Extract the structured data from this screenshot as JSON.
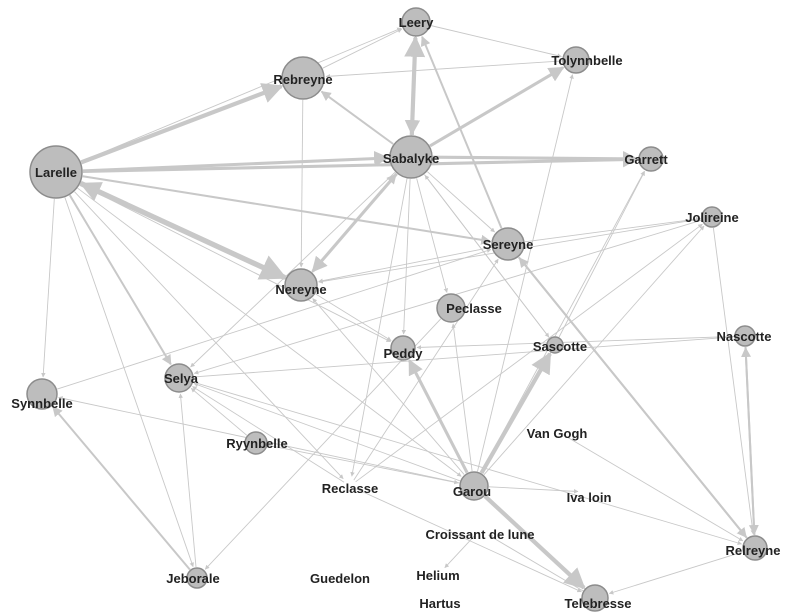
{
  "diagram": {
    "type": "directed-network",
    "colors": {
      "node_fill": "#bdbdbd",
      "node_stroke": "#8c8c8c",
      "edge": "#c8c8c8",
      "label": "#222222"
    },
    "nodes": [
      {
        "id": "leery",
        "label": "Leery"
      },
      {
        "id": "rebreyne",
        "label": "Rebreyne"
      },
      {
        "id": "tolynnbelle",
        "label": "Tolynnbelle"
      },
      {
        "id": "larelle",
        "label": "Larelle"
      },
      {
        "id": "sabalyke",
        "label": "Sabalyke"
      },
      {
        "id": "garrett",
        "label": "Garrett"
      },
      {
        "id": "jolireine",
        "label": "Jolireine"
      },
      {
        "id": "sereyne",
        "label": "Sereyne"
      },
      {
        "id": "nereyne",
        "label": "Nereyne"
      },
      {
        "id": "peclasse",
        "label": "Peclasse"
      },
      {
        "id": "nascotte",
        "label": "Nascotte"
      },
      {
        "id": "sascotte",
        "label": "Sascotte"
      },
      {
        "id": "peddy",
        "label": "Peddy"
      },
      {
        "id": "selya",
        "label": "Selya"
      },
      {
        "id": "synnbelle",
        "label": "Synnbelle"
      },
      {
        "id": "van_gogh",
        "label": "Van Gogh"
      },
      {
        "id": "ryynbelle",
        "label": "Ryynbelle"
      },
      {
        "id": "reclasse",
        "label": "Reclasse"
      },
      {
        "id": "garou",
        "label": "Garou"
      },
      {
        "id": "iva_loin",
        "label": "Iva loin"
      },
      {
        "id": "croissant",
        "label": "Croissant de lune"
      },
      {
        "id": "relreyne",
        "label": "Relreyne"
      },
      {
        "id": "jeborale",
        "label": "Jeborale"
      },
      {
        "id": "guedelon",
        "label": "Guedelon"
      },
      {
        "id": "helium",
        "label": "Helium"
      },
      {
        "id": "hartus",
        "label": "Hartus"
      },
      {
        "id": "telebresse",
        "label": "Telebresse"
      }
    ],
    "edges": [
      {
        "from": "larelle",
        "to": "rebreyne",
        "weight": 4
      },
      {
        "from": "larelle",
        "to": "leery",
        "weight": 1
      },
      {
        "from": "larelle",
        "to": "sabalyke",
        "weight": 3
      },
      {
        "from": "larelle",
        "to": "garrett",
        "weight": 3
      },
      {
        "from": "larelle",
        "to": "nereyne",
        "weight": 5
      },
      {
        "from": "nereyne",
        "to": "larelle",
        "weight": 4
      },
      {
        "from": "larelle",
        "to": "sereyne",
        "weight": 2
      },
      {
        "from": "larelle",
        "to": "synnbelle",
        "weight": 1
      },
      {
        "from": "larelle",
        "to": "selya",
        "weight": 2
      },
      {
        "from": "larelle",
        "to": "peddy",
        "weight": 1
      },
      {
        "from": "larelle",
        "to": "jeborale",
        "weight": 1
      },
      {
        "from": "larelle",
        "to": "reclasse",
        "weight": 1
      },
      {
        "from": "larelle",
        "to": "garou",
        "weight": 1
      },
      {
        "from": "rebreyne",
        "to": "leery",
        "weight": 1
      },
      {
        "from": "rebreyne",
        "to": "nereyne",
        "weight": 1
      },
      {
        "from": "sabalyke",
        "to": "rebreyne",
        "weight": 2
      },
      {
        "from": "sabalyke",
        "to": "leery",
        "weight": 4
      },
      {
        "from": "leery",
        "to": "sabalyke",
        "weight": 3
      },
      {
        "from": "sabalyke",
        "to": "tolynnbelle",
        "weight": 3
      },
      {
        "from": "sabalyke",
        "to": "garrett",
        "weight": 3
      },
      {
        "from": "sabalyke",
        "to": "nereyne",
        "weight": 3
      },
      {
        "from": "nereyne",
        "to": "sabalyke",
        "weight": 2
      },
      {
        "from": "sabalyke",
        "to": "sereyne",
        "weight": 1
      },
      {
        "from": "sabalyke",
        "to": "peclasse",
        "weight": 1
      },
      {
        "from": "sabalyke",
        "to": "peddy",
        "weight": 1
      },
      {
        "from": "sabalyke",
        "to": "reclasse",
        "weight": 1
      },
      {
        "from": "sabalyke",
        "to": "selya",
        "weight": 1
      },
      {
        "from": "sabalyke",
        "to": "sascotte",
        "weight": 1
      },
      {
        "from": "leery",
        "to": "tolynnbelle",
        "weight": 1
      },
      {
        "from": "tolynnbelle",
        "to": "rebreyne",
        "weight": 1
      },
      {
        "from": "sereyne",
        "to": "leery",
        "weight": 2
      },
      {
        "from": "sereyne",
        "to": "nereyne",
        "weight": 1
      },
      {
        "from": "sereyne",
        "to": "relreyne",
        "weight": 2
      },
      {
        "from": "relreyne",
        "to": "sereyne",
        "weight": 2
      },
      {
        "from": "garou",
        "to": "tolynnbelle",
        "weight": 1
      },
      {
        "from": "garou",
        "to": "sascotte",
        "weight": 4
      },
      {
        "from": "garou",
        "to": "peddy",
        "weight": 3
      },
      {
        "from": "garou",
        "to": "telebresse",
        "weight": 4
      },
      {
        "from": "garou",
        "to": "garrett",
        "weight": 1
      },
      {
        "from": "garou",
        "to": "jolireine",
        "weight": 1
      },
      {
        "from": "garou",
        "to": "selya",
        "weight": 1
      },
      {
        "from": "garou",
        "to": "synnbelle",
        "weight": 1
      },
      {
        "from": "garou",
        "to": "iva_loin",
        "weight": 1
      },
      {
        "from": "garou",
        "to": "nereyne",
        "weight": 1
      },
      {
        "from": "garou",
        "to": "peclasse",
        "weight": 1
      },
      {
        "from": "sascotte",
        "to": "garrett",
        "weight": 1
      },
      {
        "from": "sascotte",
        "to": "sabalyke",
        "weight": 1
      },
      {
        "from": "nascotte",
        "to": "peddy",
        "weight": 1
      },
      {
        "from": "nascotte",
        "to": "relreyne",
        "weight": 2
      },
      {
        "from": "relreyne",
        "to": "nascotte",
        "weight": 2
      },
      {
        "from": "relreyne",
        "to": "telebresse",
        "weight": 1
      },
      {
        "from": "jolireine",
        "to": "nereyne",
        "weight": 1
      },
      {
        "from": "jolireine",
        "to": "selya",
        "weight": 1
      },
      {
        "from": "jolireine",
        "to": "relreyne",
        "weight": 1
      },
      {
        "from": "selya",
        "to": "nascotte",
        "weight": 1
      },
      {
        "from": "selya",
        "to": "relreyne",
        "weight": 1
      },
      {
        "from": "synnbelle",
        "to": "sereyne",
        "weight": 1
      },
      {
        "from": "jeborale",
        "to": "synnbelle",
        "weight": 2
      },
      {
        "from": "jeborale",
        "to": "selya",
        "weight": 1
      },
      {
        "from": "ryynbelle",
        "to": "selya",
        "weight": 1
      },
      {
        "from": "reclasse",
        "to": "selya",
        "weight": 1
      },
      {
        "from": "reclasse",
        "to": "sereyne",
        "weight": 1
      },
      {
        "from": "reclasse",
        "to": "telebresse",
        "weight": 1
      },
      {
        "from": "reclasse",
        "to": "jolireine",
        "weight": 1
      },
      {
        "from": "van_gogh",
        "to": "relreyne",
        "weight": 1
      },
      {
        "from": "peclasse",
        "to": "jeborale",
        "weight": 1
      },
      {
        "from": "croissant",
        "to": "helium",
        "weight": 1
      },
      {
        "from": "telebresse",
        "to": "croissant",
        "weight": 1
      },
      {
        "from": "nereyne",
        "to": "peddy",
        "weight": 1
      },
      {
        "from": "sereyne",
        "to": "jolireine",
        "weight": 1
      },
      {
        "from": "ryynbelle",
        "to": "garou",
        "weight": 1
      }
    ]
  }
}
